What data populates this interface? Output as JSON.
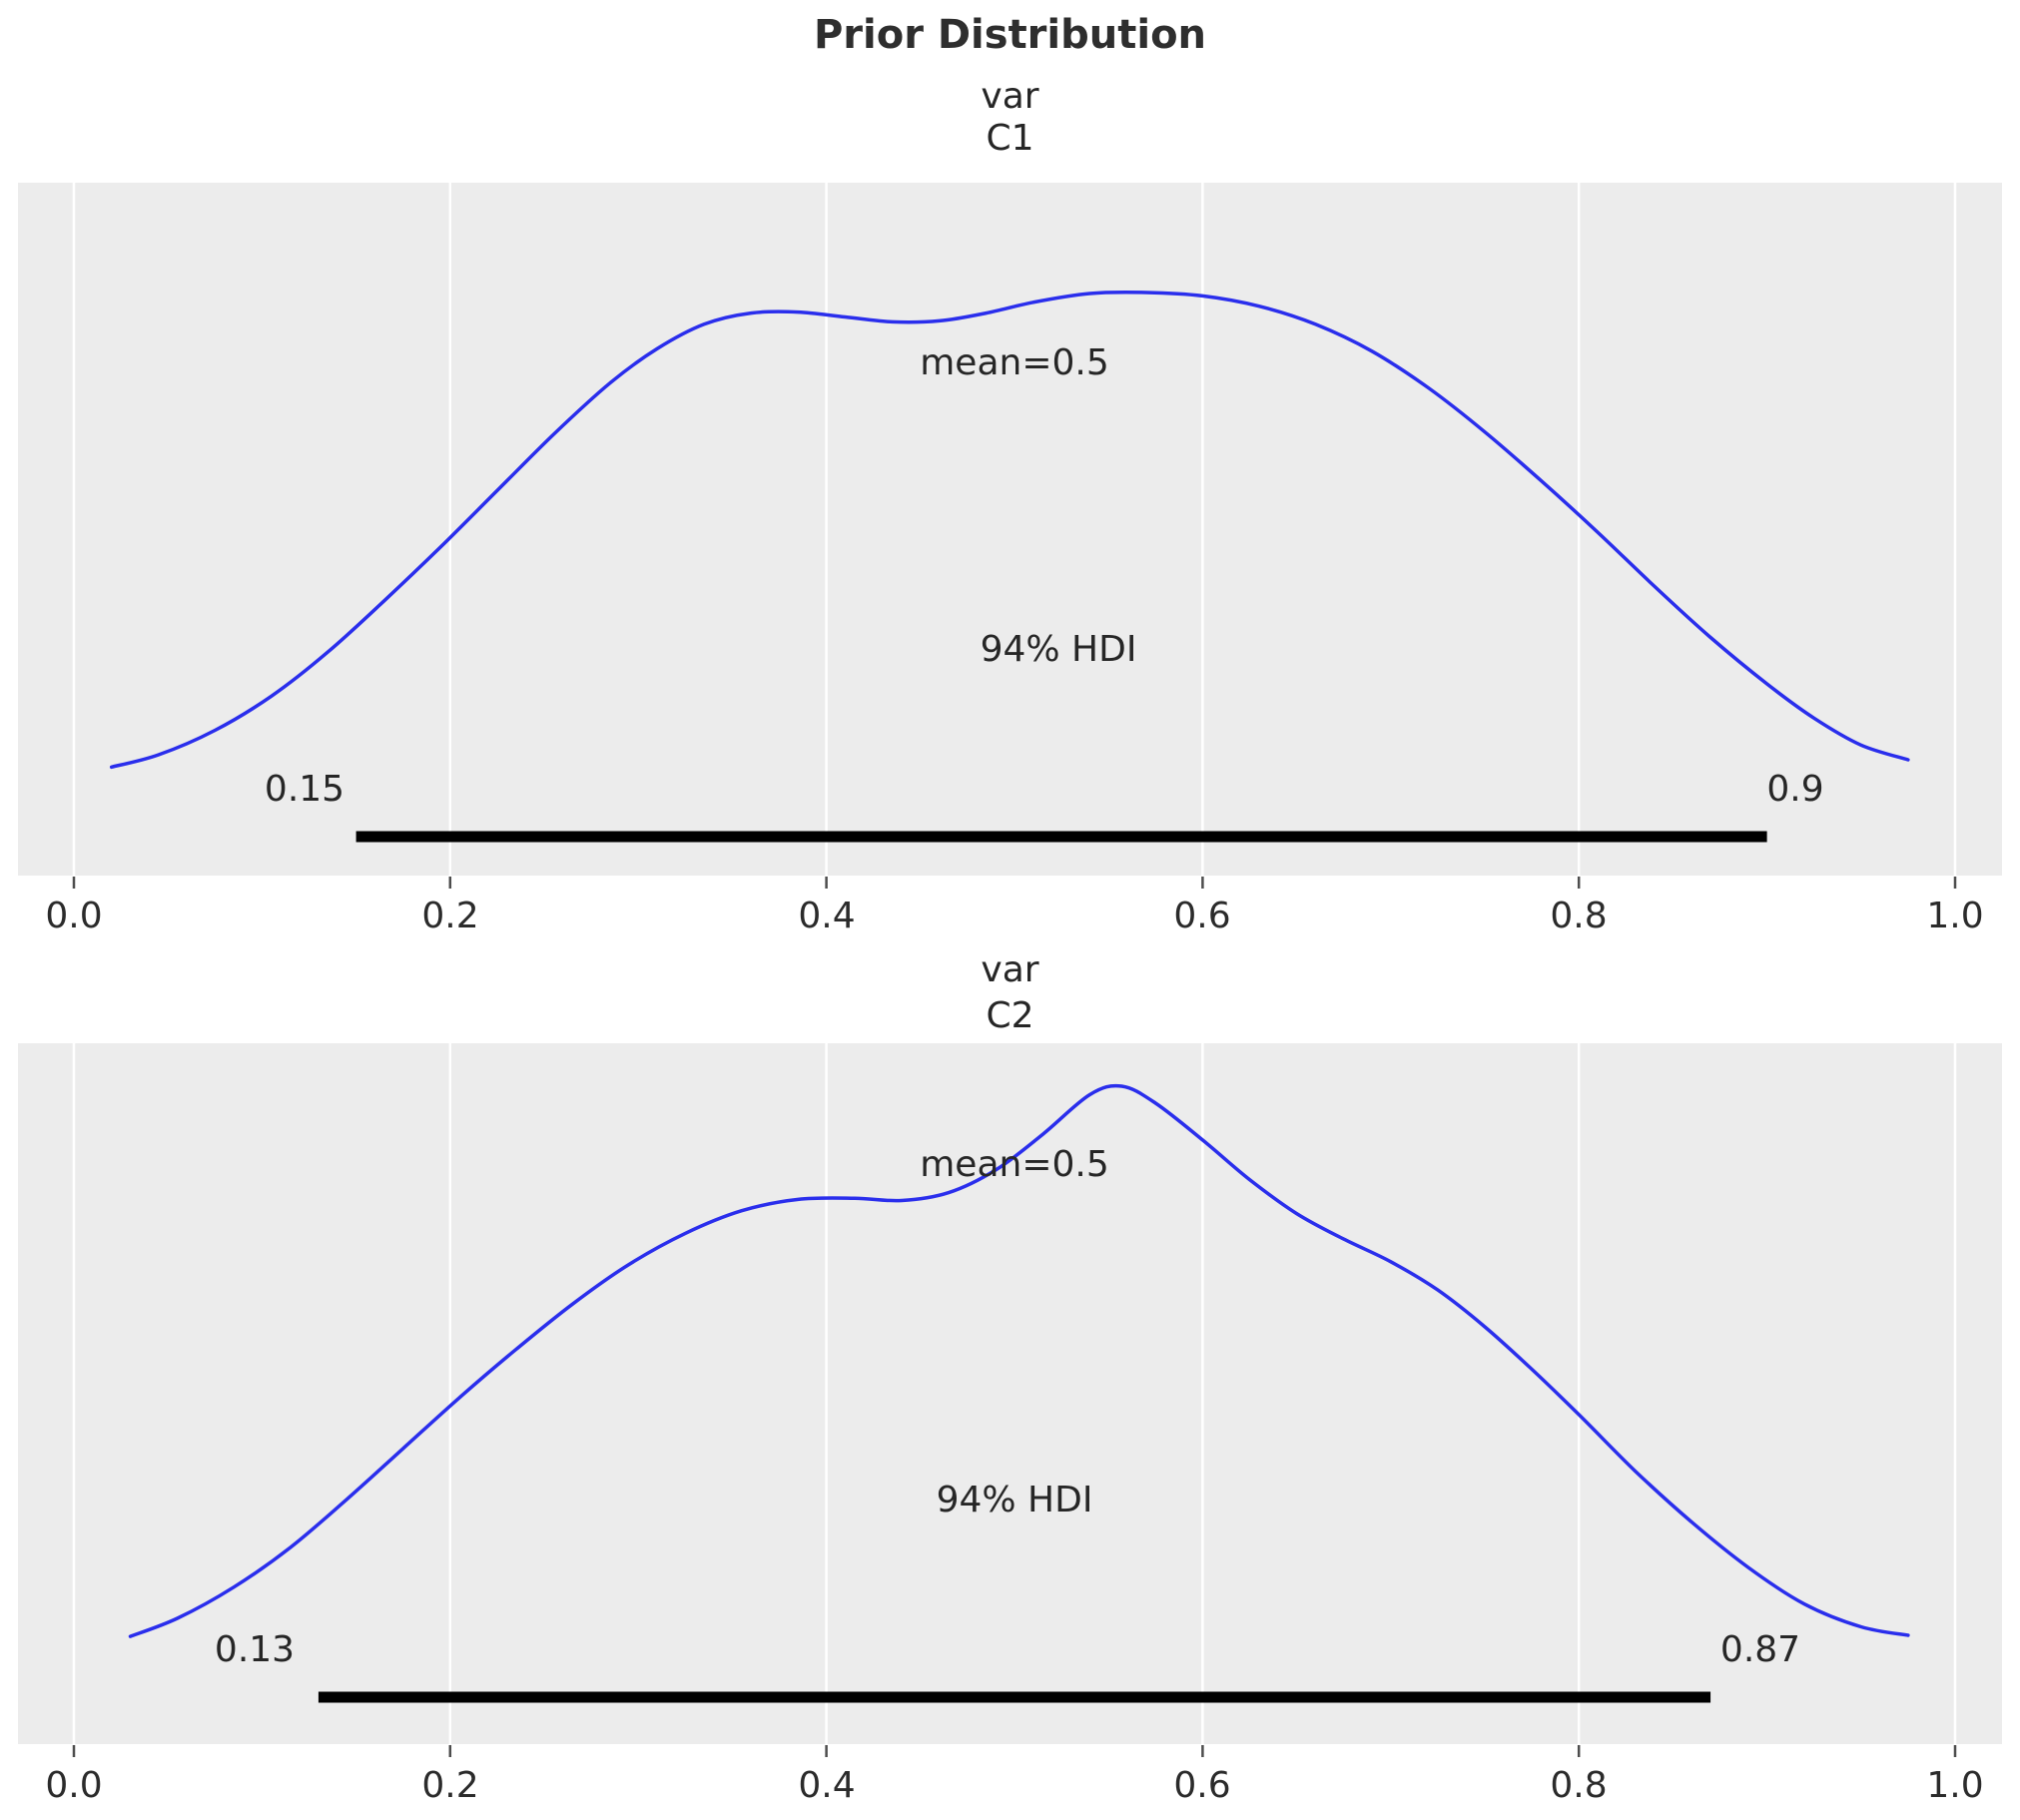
{
  "title": "Prior Distribution",
  "style": {
    "curve_color": "#2a2eec",
    "plot_bg": "#ececec",
    "grid_color": "#ffffff",
    "hdi_line_color": "#000000",
    "text_color": "#262626",
    "tick_color": "#4d4d4d"
  },
  "chart_data": [
    {
      "type": "line",
      "kind": "kde-density",
      "suptitle": "var",
      "name": "C1",
      "mean": 0.5,
      "mean_label": "mean=0.5",
      "hdi_prob": 0.94,
      "hdi_label": "94% HDI",
      "hdi_low": 0.15,
      "hdi_low_label": "0.15",
      "hdi_high": 0.9,
      "hdi_high_label": "0.9",
      "x_range": [
        0.0,
        1.0
      ],
      "grid": "vertical-white",
      "x_ticks": [
        {
          "value": 0.0,
          "label": "0.0"
        },
        {
          "value": 0.2,
          "label": "0.2"
        },
        {
          "value": 0.4,
          "label": "0.4"
        },
        {
          "value": 0.6,
          "label": "0.6"
        },
        {
          "value": 0.8,
          "label": "0.8"
        },
        {
          "value": 1.0,
          "label": "1.0"
        }
      ],
      "curve": [
        [
          0.02,
          0.03
        ],
        [
          0.045,
          0.055
        ],
        [
          0.075,
          0.105
        ],
        [
          0.105,
          0.175
        ],
        [
          0.135,
          0.265
        ],
        [
          0.165,
          0.37
        ],
        [
          0.195,
          0.48
        ],
        [
          0.225,
          0.595
        ],
        [
          0.255,
          0.71
        ],
        [
          0.285,
          0.815
        ],
        [
          0.31,
          0.885
        ],
        [
          0.335,
          0.935
        ],
        [
          0.36,
          0.958
        ],
        [
          0.385,
          0.96
        ],
        [
          0.41,
          0.95
        ],
        [
          0.435,
          0.94
        ],
        [
          0.46,
          0.942
        ],
        [
          0.485,
          0.958
        ],
        [
          0.51,
          0.98
        ],
        [
          0.54,
          0.998
        ],
        [
          0.57,
          1.0
        ],
        [
          0.6,
          0.993
        ],
        [
          0.63,
          0.972
        ],
        [
          0.66,
          0.935
        ],
        [
          0.69,
          0.88
        ],
        [
          0.72,
          0.805
        ],
        [
          0.75,
          0.715
        ],
        [
          0.78,
          0.615
        ],
        [
          0.81,
          0.51
        ],
        [
          0.84,
          0.4
        ],
        [
          0.87,
          0.295
        ],
        [
          0.9,
          0.2
        ],
        [
          0.925,
          0.13
        ],
        [
          0.95,
          0.075
        ],
        [
          0.975,
          0.045
        ]
      ]
    },
    {
      "type": "line",
      "kind": "kde-density",
      "suptitle": "var",
      "name": "C2",
      "mean": 0.5,
      "mean_label": "mean=0.5",
      "hdi_prob": 0.94,
      "hdi_label": "94% HDI",
      "hdi_low": 0.13,
      "hdi_low_label": "0.13",
      "hdi_high": 0.87,
      "hdi_high_label": "0.87",
      "x_range": [
        0.0,
        1.0
      ],
      "grid": "vertical-white",
      "x_ticks": [
        {
          "value": 0.0,
          "label": "0.0"
        },
        {
          "value": 0.2,
          "label": "0.2"
        },
        {
          "value": 0.4,
          "label": "0.4"
        },
        {
          "value": 0.6,
          "label": "0.6"
        },
        {
          "value": 0.8,
          "label": "0.8"
        },
        {
          "value": 1.0,
          "label": "1.0"
        }
      ],
      "curve": [
        [
          0.03,
          0.028
        ],
        [
          0.055,
          0.06
        ],
        [
          0.085,
          0.115
        ],
        [
          0.115,
          0.185
        ],
        [
          0.145,
          0.27
        ],
        [
          0.175,
          0.36
        ],
        [
          0.205,
          0.45
        ],
        [
          0.235,
          0.535
        ],
        [
          0.265,
          0.615
        ],
        [
          0.295,
          0.685
        ],
        [
          0.325,
          0.74
        ],
        [
          0.355,
          0.78
        ],
        [
          0.385,
          0.8
        ],
        [
          0.415,
          0.802
        ],
        [
          0.44,
          0.798
        ],
        [
          0.465,
          0.812
        ],
        [
          0.49,
          0.852
        ],
        [
          0.515,
          0.915
        ],
        [
          0.54,
          0.985
        ],
        [
          0.557,
          1.0
        ],
        [
          0.575,
          0.97
        ],
        [
          0.6,
          0.905
        ],
        [
          0.625,
          0.835
        ],
        [
          0.65,
          0.775
        ],
        [
          0.675,
          0.73
        ],
        [
          0.7,
          0.69
        ],
        [
          0.725,
          0.64
        ],
        [
          0.75,
          0.575
        ],
        [
          0.775,
          0.5
        ],
        [
          0.8,
          0.42
        ],
        [
          0.83,
          0.32
        ],
        [
          0.86,
          0.23
        ],
        [
          0.89,
          0.15
        ],
        [
          0.92,
          0.085
        ],
        [
          0.95,
          0.045
        ],
        [
          0.975,
          0.03
        ]
      ]
    }
  ]
}
